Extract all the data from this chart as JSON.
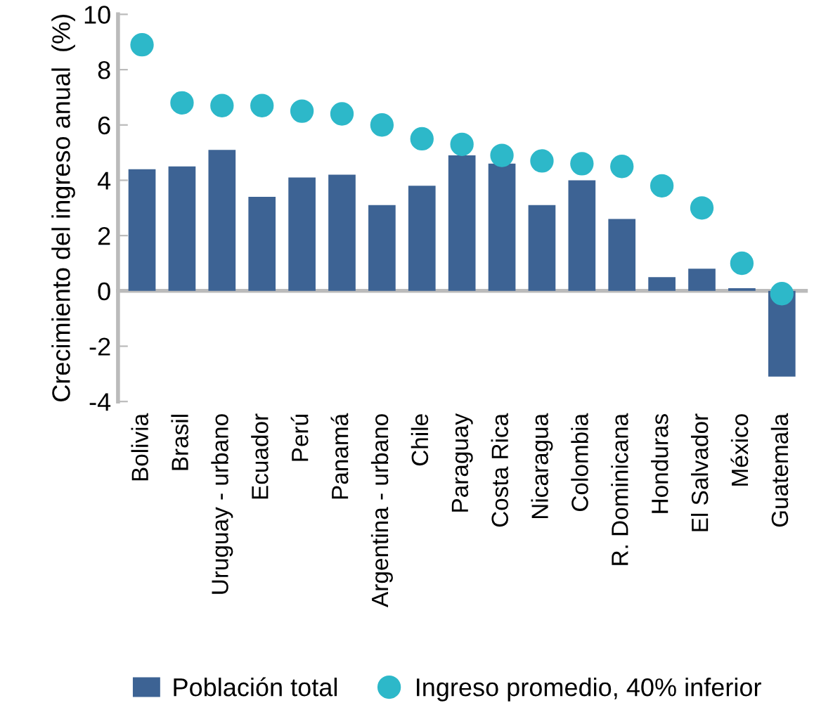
{
  "chart_data": {
    "type": "bar",
    "ylabel": "Crecimiento del ingreso anual  (%)",
    "categories": [
      "Bolivia",
      "Brasil",
      "Uruguay - urbano",
      "Ecuador",
      "Perú",
      "Panamá",
      "Argentina - urbano",
      "Chile",
      "Paraguay",
      "Costa Rica",
      "Nicaragua",
      "Colombia",
      "R. Dominicana",
      "Honduras",
      "El Salvador",
      "México",
      "Guatemala"
    ],
    "series": [
      {
        "name": "Población total",
        "color": "#3d6394",
        "values": [
          4.4,
          4.5,
          5.1,
          3.4,
          4.1,
          4.2,
          3.1,
          3.8,
          4.9,
          4.6,
          3.1,
          4.0,
          2.6,
          0.5,
          0.8,
          0.1,
          -3.1
        ]
      },
      {
        "name": "Ingreso promedio, 40% inferior",
        "type": "scatter",
        "color": "#2db8c9",
        "marker": "circle",
        "values": [
          8.9,
          6.8,
          6.7,
          6.7,
          6.5,
          6.4,
          6.0,
          5.5,
          5.3,
          4.9,
          4.7,
          4.6,
          4.5,
          3.8,
          3.0,
          1.0,
          -0.1
        ]
      }
    ],
    "ylim": [
      -4,
      10
    ],
    "yticks": [
      -4,
      -2,
      0,
      2,
      4,
      6,
      8,
      10
    ],
    "legend": "bottom"
  }
}
